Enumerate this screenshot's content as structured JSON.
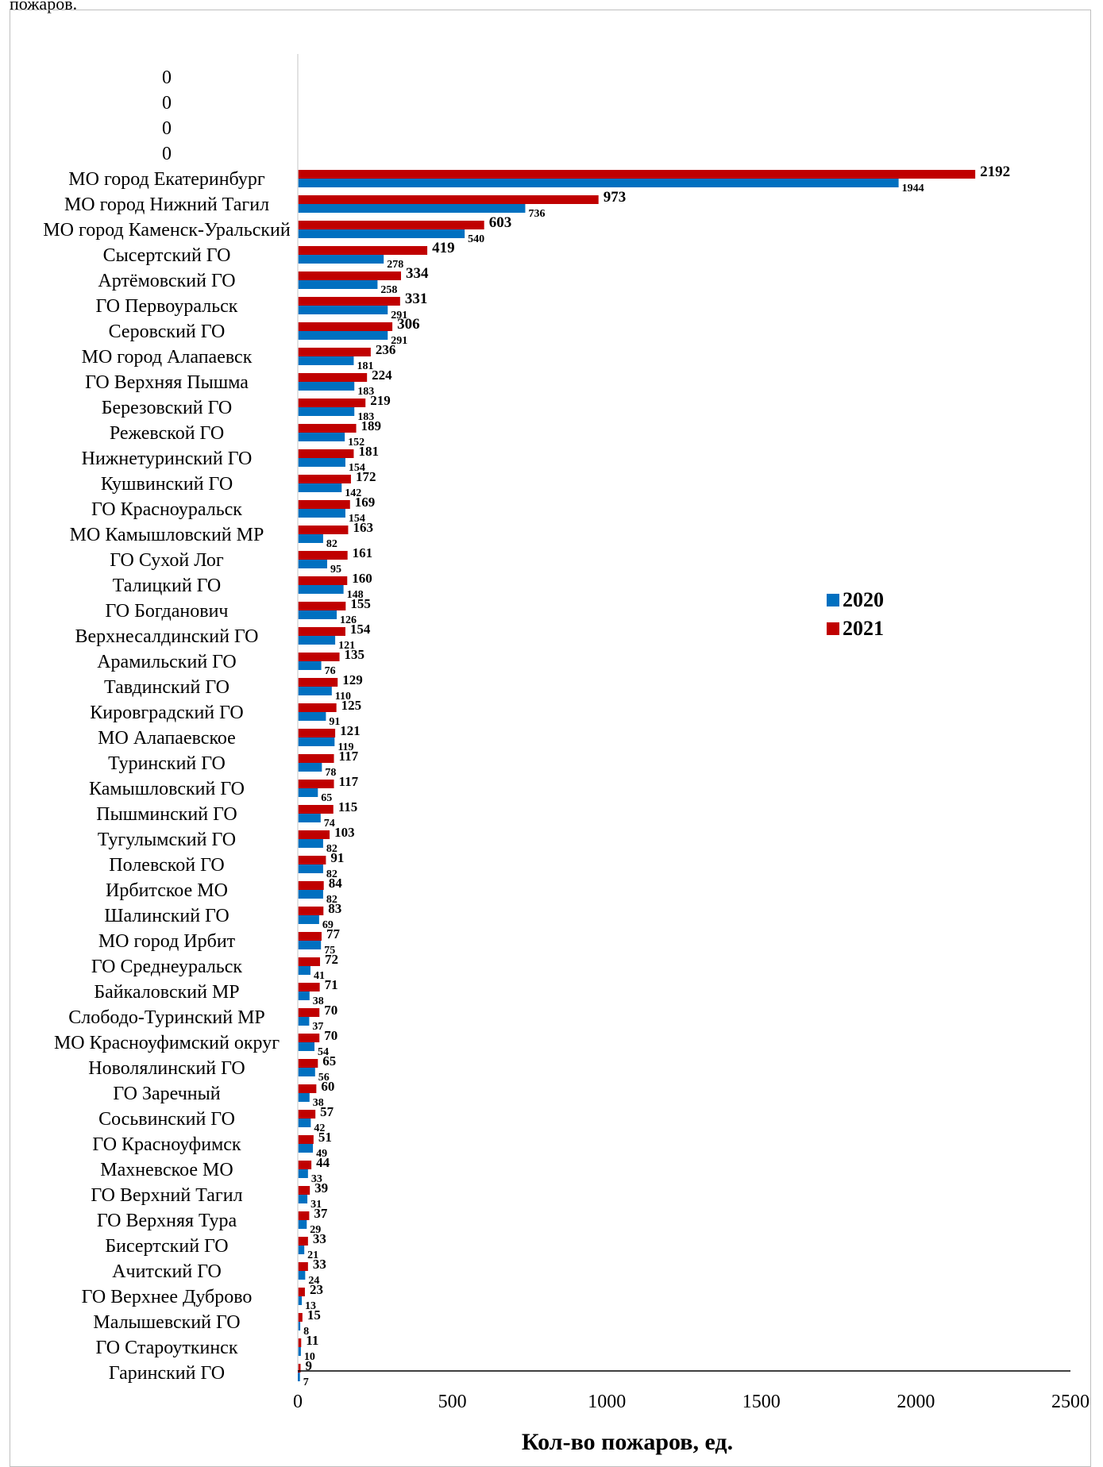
{
  "page": {
    "top_text": "пожаров."
  },
  "colors": {
    "series2020": "#0070c0",
    "series2021": "#c00000",
    "axis": "#000000"
  },
  "chart_data": {
    "type": "bar",
    "orientation": "horizontal",
    "title": "",
    "xlabel": "Кол-во пожаров, ед.",
    "ylabel": "",
    "xlim": [
      0,
      2500
    ],
    "xticks": [
      "0",
      "500",
      "1000",
      "1500",
      "2000",
      "2500"
    ],
    "legend_position": "right",
    "categories": [
      "0",
      "0",
      "0",
      "0",
      "МО город Екатеринбург",
      "МО город Нижний Тагил",
      "МО город Каменск-Уральский",
      "Сысертский ГО",
      "Артёмовский ГО",
      "ГО Первоуральск",
      "Серовский ГО",
      "МО город Алапаевск",
      "ГО Верхняя Пышма",
      "Березовский ГО",
      "Режевской ГО",
      "Нижнетуринский ГО",
      "Кушвинский ГО",
      "ГО Красноуральск",
      "МО Камышловский МР",
      "ГО Сухой Лог",
      "Талицкий ГО",
      "ГО Богданович",
      "Верхнесалдинский ГО",
      "Арамильский ГО",
      "Тавдинский ГО",
      "Кировградский ГО",
      "МО Алапаевское",
      "Туринский ГО",
      "Камышловский ГО",
      "Пышминский ГО",
      "Тугулымский ГО",
      "Полевской ГО",
      "Ирбитское МО",
      "Шалинский ГО",
      "МО город Ирбит",
      "ГО Среднеуральск",
      "Байкаловский МР",
      "Слободо-Туринский МР",
      "МО Красноуфимский округ",
      "Новолялинский ГО",
      "ГО Заречный",
      "Сосьвинский ГО",
      "ГО Красноуфимск",
      "Махневское МО",
      "ГО Верхний Тагил",
      "ГО Верхняя Тура",
      "Бисертский ГО",
      "Ачитский ГО",
      "ГО Верхнее Дуброво",
      "Малышевский ГО",
      "ГО Староуткинск",
      "Гаринский ГО"
    ],
    "series": [
      {
        "name": "2020",
        "values": [
          null,
          null,
          null,
          null,
          1944,
          736,
          540,
          278,
          258,
          291,
          291,
          181,
          183,
          183,
          152,
          154,
          142,
          154,
          82,
          95,
          148,
          126,
          121,
          76,
          110,
          91,
          119,
          78,
          65,
          74,
          82,
          82,
          82,
          69,
          75,
          41,
          38,
          37,
          54,
          56,
          38,
          42,
          49,
          33,
          31,
          29,
          21,
          24,
          13,
          8,
          10,
          7
        ]
      },
      {
        "name": "2021",
        "values": [
          null,
          null,
          null,
          null,
          2192,
          973,
          603,
          419,
          334,
          331,
          306,
          236,
          224,
          219,
          189,
          181,
          172,
          169,
          163,
          161,
          160,
          155,
          154,
          135,
          129,
          125,
          121,
          117,
          117,
          115,
          103,
          91,
          84,
          83,
          77,
          72,
          71,
          70,
          70,
          65,
          60,
          57,
          51,
          44,
          39,
          37,
          33,
          33,
          23,
          15,
          11,
          9
        ]
      }
    ]
  }
}
